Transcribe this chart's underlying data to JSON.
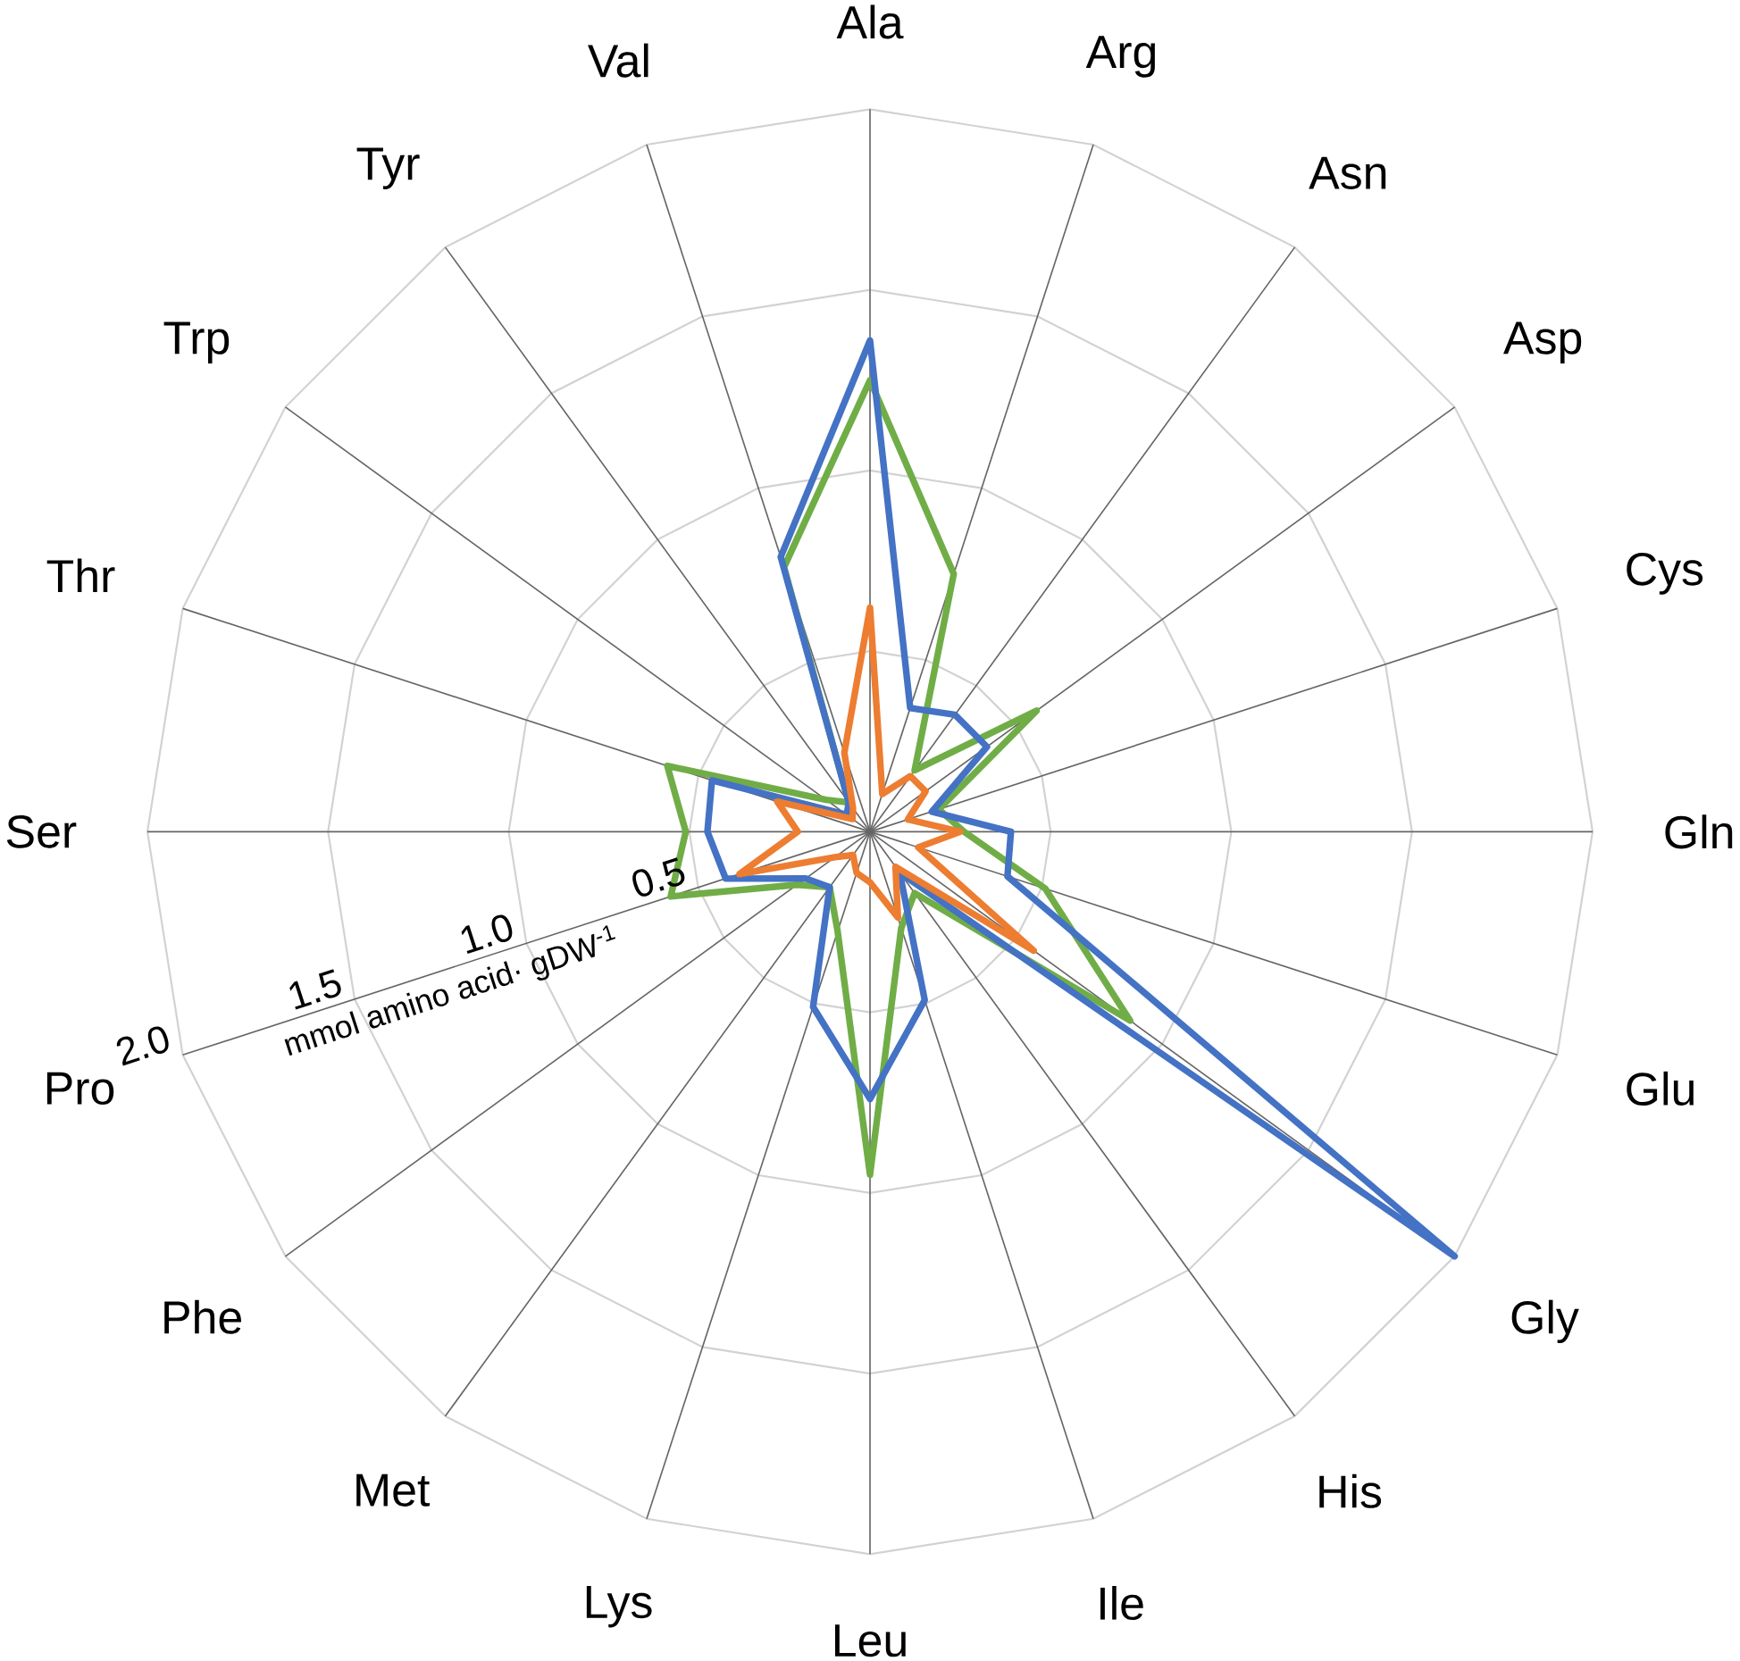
{
  "chart_data": {
    "type": "radar",
    "ylabel": "mmol amino acid· gDW$^{-1}$",
    "categories": [
      "Ala",
      "Arg",
      "Asn",
      "Asp",
      "Cys",
      "Gln",
      "Glu",
      "Gly",
      "His",
      "Ile",
      "Leu",
      "Lys",
      "Met",
      "Phe",
      "Pro",
      "Ser",
      "Thr",
      "Trp",
      "Tyr",
      "Val"
    ],
    "series": [
      {
        "color": "#70ad47",
        "values": [
          1.25,
          0.75,
          0.21,
          0.57,
          0.2,
          0.26,
          0.51,
          0.89,
          0.21,
          0.28,
          0.95,
          0.29,
          0.19,
          0.25,
          0.58,
          0.51,
          0.59,
          0.15,
          0.1,
          0.77
        ]
      },
      {
        "color": "#4472c4",
        "values": [
          1.36,
          0.36,
          0.4,
          0.4,
          0.18,
          0.39,
          0.4,
          2.0,
          0.14,
          0.49,
          0.74,
          0.51,
          0.19,
          0.22,
          0.42,
          0.45,
          0.46,
          0.08,
          0.1,
          0.8
        ]
      },
      {
        "color": "#ed7d31",
        "values": [
          0.62,
          0.11,
          0.19,
          0.19,
          0.11,
          0.25,
          0.14,
          0.56,
          0.12,
          0.25,
          0.14,
          0.12,
          0.08,
          0.12,
          0.38,
          0.2,
          0.27,
          0.06,
          0.08,
          0.23
        ]
      }
    ],
    "ylim": [
      0,
      2
    ],
    "yticks": [
      0.5,
      {
        "value": 1,
        "label": "1.0"
      },
      1.5,
      {
        "value": 2,
        "label": "2.0"
      }
    ],
    "grid": true
  }
}
